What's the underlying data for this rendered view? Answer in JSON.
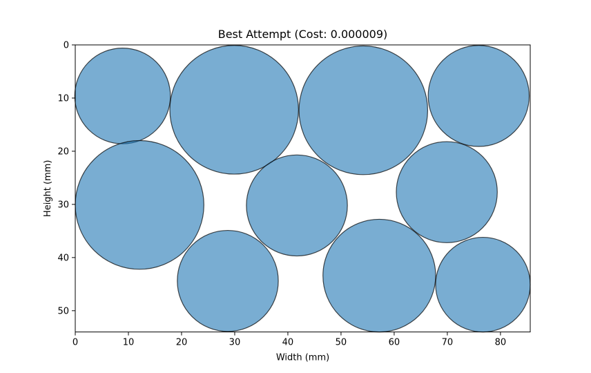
{
  "chart_data": {
    "type": "scatter",
    "title": "Best Attempt (Cost: 0.000009)",
    "xlabel": "Width (mm)",
    "ylabel": "Height (mm)",
    "xlim": [
      0,
      85.6
    ],
    "ylim": [
      54,
      0
    ],
    "y_inverted": true,
    "aspect": "equal",
    "grid": false,
    "legend": "none",
    "xticks": [
      0,
      10,
      20,
      30,
      40,
      50,
      60,
      70,
      80
    ],
    "yticks": [
      0,
      10,
      20,
      30,
      40,
      50
    ],
    "circles": [
      {
        "cx": 8.9,
        "cy": 9.6,
        "r": 9.0
      },
      {
        "cx": 29.9,
        "cy": 12.2,
        "r": 12.1
      },
      {
        "cx": 54.2,
        "cy": 12.3,
        "r": 12.1
      },
      {
        "cx": 75.9,
        "cy": 9.6,
        "r": 9.5
      },
      {
        "cx": 12.1,
        "cy": 30.1,
        "r": 12.1
      },
      {
        "cx": 41.7,
        "cy": 30.2,
        "r": 9.5
      },
      {
        "cx": 69.9,
        "cy": 27.7,
        "r": 9.5
      },
      {
        "cx": 28.7,
        "cy": 44.4,
        "r": 9.5
      },
      {
        "cx": 57.2,
        "cy": 43.4,
        "r": 10.6
      },
      {
        "cx": 76.7,
        "cy": 45.1,
        "r": 8.9
      }
    ],
    "colors": {
      "fill": "#1f77b4",
      "fill_opacity": 0.6,
      "edge": "#000000",
      "edge_opacity": 0.7
    }
  }
}
